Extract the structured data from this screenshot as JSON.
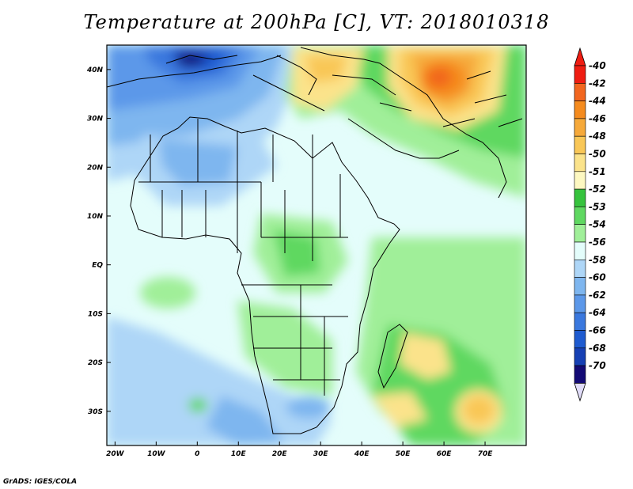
{
  "title": "Temperature at 200hPa [C], VT: 2018010318",
  "footer": "GrADS: IGES/COLA",
  "map": {
    "lon_range": [
      -22,
      80
    ],
    "lat_range": [
      -37,
      45
    ],
    "x_ticks": [
      "20W",
      "10W",
      "0",
      "10E",
      "20E",
      "30E",
      "40E",
      "50E",
      "60E",
      "70E"
    ],
    "y_ticks": [
      "40N",
      "30N",
      "20N",
      "10N",
      "EQ",
      "10S",
      "20S",
      "30S"
    ]
  },
  "colorbar": {
    "labels": [
      "-40",
      "-42",
      "-44",
      "-46",
      "-48",
      "-50",
      "-51",
      "-52",
      "-53",
      "-54",
      "-56",
      "-58",
      "-60",
      "-62",
      "-64",
      "-66",
      "-68",
      "-70"
    ],
    "colors": [
      "#ef1d12",
      "#f2661f",
      "#f58b1e",
      "#f6a93a",
      "#f9c757",
      "#fbe38b",
      "#fdf8c1",
      "#36c33d",
      "#5fd861",
      "#a0ef99",
      "#e4fdfb",
      "#aed6f7",
      "#7eb6ef",
      "#5c98e9",
      "#3a78de",
      "#1e5bd0",
      "#1640b4",
      "#130a75"
    ]
  }
}
